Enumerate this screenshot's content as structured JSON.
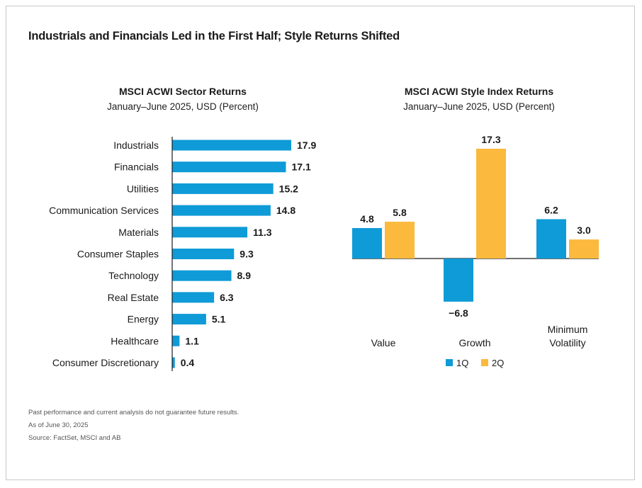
{
  "main_title": "Industrials and Financials Led in the First Half; Style Returns Shifted",
  "colors": {
    "bar": "#0f9bd7",
    "q1": "#0f9bd7",
    "q2": "#fbb93d",
    "axis": "#1a1a1a"
  },
  "chart_data": [
    {
      "type": "bar",
      "orientation": "horizontal",
      "title": "MSCI ACWI Sector Returns",
      "subtitle": "January–June 2025, USD (Percent)",
      "categories": [
        "Industrials",
        "Financials",
        "Utilities",
        "Communication Services",
        "Materials",
        "Consumer Staples",
        "Technology",
        "Real Estate",
        "Energy",
        "Healthcare",
        "Consumer Discretionary"
      ],
      "values": [
        17.9,
        17.1,
        15.2,
        14.8,
        11.3,
        9.3,
        8.9,
        6.3,
        5.1,
        1.1,
        0.4
      ],
      "value_labels": [
        "17.9",
        "17.1",
        "15.2",
        "14.8",
        "11.3",
        "9.3",
        "8.9",
        "6.3",
        "5.1",
        "1.1",
        "0.4"
      ],
      "xlim": [
        0,
        17.9
      ]
    },
    {
      "type": "bar",
      "orientation": "vertical",
      "title": "MSCI ACWI Style Index Returns",
      "subtitle": "January–June 2025, USD (Percent)",
      "categories": [
        [
          "Value"
        ],
        [
          "Growth"
        ],
        [
          "Minimum",
          "Volatility"
        ]
      ],
      "series": [
        {
          "name": "1Q",
          "values": [
            4.8,
            -6.8,
            6.2
          ],
          "labels": [
            "4.8",
            "−6.8",
            "6.2"
          ]
        },
        {
          "name": "2Q",
          "values": [
            5.8,
            17.3,
            3.0
          ],
          "labels": [
            "5.8",
            "17.3",
            "3.0"
          ]
        }
      ],
      "ylim": [
        -6.8,
        17.3
      ],
      "legend": "bottom-center"
    }
  ],
  "footnotes": [
    "Past performance and current analysis do not guarantee future results.",
    "As of June 30, 2025",
    "Source: FactSet, MSCI and AB"
  ]
}
